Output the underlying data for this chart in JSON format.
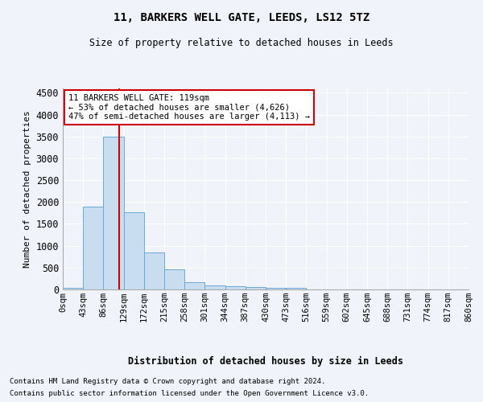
{
  "title1": "11, BARKERS WELL GATE, LEEDS, LS12 5TZ",
  "title2": "Size of property relative to detached houses in Leeds",
  "xlabel": "Distribution of detached houses by size in Leeds",
  "ylabel": "Number of detached properties",
  "bin_edges": [
    0,
    43,
    86,
    129,
    172,
    215,
    258,
    301,
    344,
    387,
    430,
    473,
    516,
    559,
    602,
    645,
    688,
    731,
    774,
    817,
    860
  ],
  "bar_heights": [
    40,
    1900,
    3500,
    1775,
    840,
    460,
    160,
    100,
    65,
    55,
    40,
    30,
    0,
    0,
    0,
    0,
    0,
    0,
    0,
    0
  ],
  "bar_color": "#c9ddf0",
  "bar_edge_color": "#6aaad4",
  "property_size": 119,
  "vline_color": "#cc0000",
  "annotation_text": "11 BARKERS WELL GATE: 119sqm\n← 53% of detached houses are smaller (4,626)\n47% of semi-detached houses are larger (4,113) →",
  "annotation_box_color": "#cc0000",
  "ylim": [
    0,
    4600
  ],
  "yticks": [
    0,
    500,
    1000,
    1500,
    2000,
    2500,
    3000,
    3500,
    4000,
    4500
  ],
  "footnote1": "Contains HM Land Registry data © Crown copyright and database right 2024.",
  "footnote2": "Contains public sector information licensed under the Open Government Licence v3.0.",
  "bg_color": "#f0f4fa",
  "plot_bg_color": "#f0f4fa",
  "grid_color": "#ffffff"
}
